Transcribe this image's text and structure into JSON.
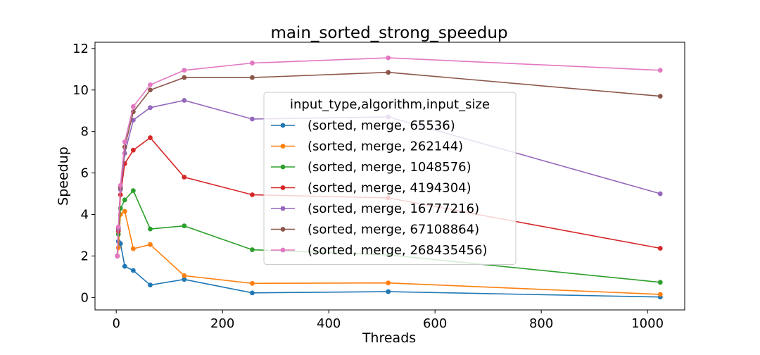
{
  "chart_data": {
    "type": "line",
    "title": "main_sorted_strong_speedup",
    "xlabel": "Threads",
    "ylabel": "Speedup",
    "xlim": [
      -40,
      1070
    ],
    "ylim": [
      -0.6,
      12.3
    ],
    "xticks": [
      0,
      200,
      400,
      600,
      800,
      1000
    ],
    "yticks": [
      0,
      2,
      4,
      6,
      8,
      10,
      12
    ],
    "x": [
      2,
      4,
      8,
      16,
      32,
      64,
      128,
      256,
      512,
      1024
    ],
    "legend": {
      "title": "input_type,algorithm,input_size",
      "placement": "center"
    },
    "series": [
      {
        "name": "(sorted, merge, 65536)",
        "color": "#1f77b4",
        "values": [
          2.0,
          2.7,
          2.6,
          1.5,
          1.3,
          0.6,
          0.87,
          0.22,
          0.28,
          0.02
        ]
      },
      {
        "name": "(sorted, merge, 262144)",
        "color": "#ff7f0e",
        "values": [
          2.0,
          2.4,
          4.0,
          4.15,
          2.35,
          2.55,
          1.05,
          0.68,
          0.7,
          0.15
        ]
      },
      {
        "name": "(sorted, merge, 1048576)",
        "color": "#2ca02c",
        "values": [
          2.0,
          3.05,
          4.3,
          4.7,
          5.15,
          3.3,
          3.45,
          2.3,
          2.05,
          0.73
        ]
      },
      {
        "name": "(sorted, merge, 4194304)",
        "color": "#d62728",
        "values": [
          2.0,
          3.2,
          4.95,
          6.45,
          7.1,
          7.7,
          5.8,
          4.95,
          4.8,
          2.37
        ]
      },
      {
        "name": "(sorted, merge, 16777216)",
        "color": "#9467bd",
        "values": [
          2.0,
          3.3,
          5.2,
          6.95,
          8.55,
          9.15,
          9.5,
          8.6,
          8.7,
          5.0
        ]
      },
      {
        "name": "(sorted, merge, 67108864)",
        "color": "#8c564b",
        "values": [
          2.0,
          3.35,
          5.3,
          7.25,
          8.95,
          10.0,
          10.6,
          10.6,
          10.85,
          9.7
        ]
      },
      {
        "name": "(sorted, merge, 268435456)",
        "color": "#e377c2",
        "values": [
          2.0,
          3.4,
          5.4,
          7.5,
          9.2,
          10.25,
          10.95,
          11.3,
          11.55,
          10.95
        ]
      }
    ]
  }
}
